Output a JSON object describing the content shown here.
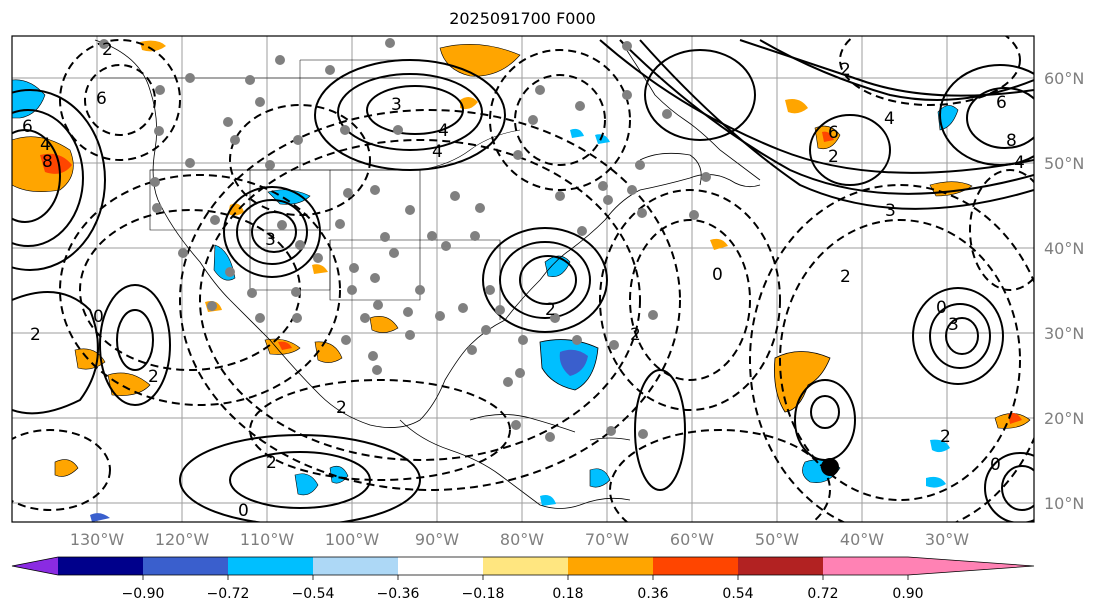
{
  "title": "2025091700 F000",
  "lat_labels": [
    "60°N",
    "50°N",
    "40°N",
    "30°N",
    "20°N",
    "10°N"
  ],
  "lon_labels": [
    "130°W",
    "120°W",
    "110°W",
    "100°W",
    "90°W",
    "80°W",
    "70°W",
    "60°W",
    "50°W",
    "40°W",
    "30°W"
  ],
  "colorbar": {
    "ticks": [
      "−0.90",
      "−0.72",
      "−0.54",
      "−0.36",
      "−0.18",
      "0.18",
      "0.36",
      "0.54",
      "0.72",
      "0.90"
    ],
    "colors": [
      "#8a2be2",
      "#00008b",
      "#3a5fcd",
      "#00bfff",
      "#add8f6",
      "#ffffff",
      "#ffe680",
      "#ffa500",
      "#ff4500",
      "#b22222",
      "#ff82b4"
    ]
  },
  "contour_labels": [
    "6",
    "4",
    "6",
    "8",
    "2",
    "4",
    "3",
    "4",
    "6",
    "4",
    "2",
    "0",
    "8",
    "6",
    "4",
    "3",
    "2",
    "0",
    "2",
    "2",
    "2",
    "2",
    "0",
    "0",
    "0",
    "2",
    "3",
    "2",
    "2",
    "2",
    "3"
  ],
  "markers": [
    "black-dot"
  ]
}
